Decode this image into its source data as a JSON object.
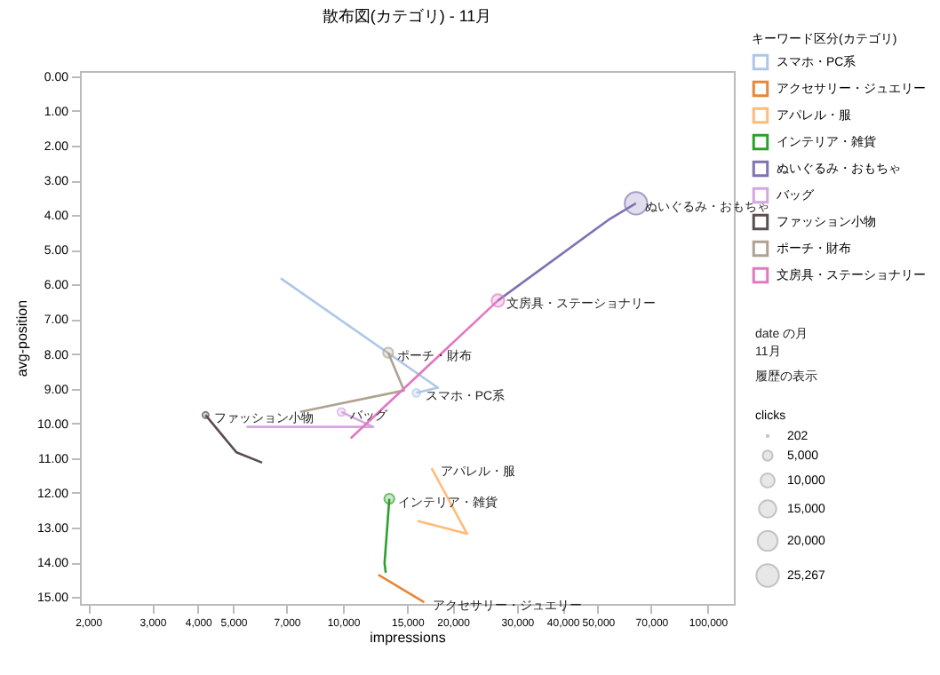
{
  "chart_data": {
    "type": "line",
    "title": "散布図(カテゴリ) - 11月",
    "xlabel": "impressions",
    "ylabel": "avg-position",
    "legend_title": "キーワード区分(カテゴリ)",
    "log": "x",
    "xlim": [
      1900,
      118000
    ],
    "xticks": [
      {
        "value": 2000,
        "label": "2,000"
      },
      {
        "value": 3000,
        "label": "3,000"
      },
      {
        "value": 4000,
        "label": "4,000"
      },
      {
        "value": 5000,
        "label": "5,000"
      },
      {
        "value": 7000,
        "label": "7,000"
      },
      {
        "value": 10000,
        "label": "10,000"
      },
      {
        "value": 15000,
        "label": "15,000"
      },
      {
        "value": 20000,
        "label": "20,000"
      },
      {
        "value": 30000,
        "label": "30,000"
      },
      {
        "value": 40000,
        "label": "40,000"
      },
      {
        "value": 50000,
        "label": "50,000"
      },
      {
        "value": 70000,
        "label": "70,000"
      },
      {
        "value": 100000,
        "label": "100,000"
      }
    ],
    "ylim": [
      15.2,
      -0.15
    ],
    "yticks": [
      {
        "value": 0,
        "label": "0.00"
      },
      {
        "value": 1,
        "label": "1.00"
      },
      {
        "value": 2,
        "label": "2.00"
      },
      {
        "value": 3,
        "label": "3.00"
      },
      {
        "value": 4,
        "label": "4.00"
      },
      {
        "value": 5,
        "label": "5.00"
      },
      {
        "value": 6,
        "label": "6.00"
      },
      {
        "value": 7,
        "label": "7.00"
      },
      {
        "value": 8,
        "label": "8.00"
      },
      {
        "value": 9,
        "label": "9.00"
      },
      {
        "value": 10,
        "label": "10.00"
      },
      {
        "value": 11,
        "label": "11.00"
      },
      {
        "value": 12,
        "label": "12.00"
      },
      {
        "value": 13,
        "label": "13.00"
      },
      {
        "value": 14,
        "label": "14.00"
      },
      {
        "value": 15,
        "label": "15.00"
      }
    ],
    "grid": false,
    "legend": "right",
    "annotations": [
      "date の月",
      "11月",
      "履歴の表示",
      "clicks"
    ],
    "size_legend": [
      {
        "value": 202,
        "label": "202"
      },
      {
        "value": 5000,
        "label": "5,000"
      },
      {
        "value": 10000,
        "label": "10,000"
      },
      {
        "value": 15000,
        "label": "15,000"
      },
      {
        "value": 20000,
        "label": "20,000"
      },
      {
        "value": 25267,
        "label": "25,267"
      }
    ],
    "series": [
      {
        "name": "スマホ・PC系",
        "color": "#aec7e8",
        "x": [
          6750,
          18200,
          15900
        ],
        "values": [
          5.82,
          8.97,
          9.12
        ]
      },
      {
        "name": "アクセサリー・ジュエリー",
        "color": "#e6873a",
        "x": [
          12500,
          16700
        ],
        "values": [
          14.36,
          15.15
        ]
      },
      {
        "name": "アパレル・服",
        "color": "#ffbb78",
        "x": [
          16000,
          21900,
          17500
        ],
        "values": [
          12.81,
          13.18,
          11.29
        ]
      },
      {
        "name": "インテリア・雑貨",
        "color": "#2ca02c",
        "x": [
          13100,
          13000,
          13400
        ],
        "values": [
          14.3,
          14.03,
          12.17
        ]
      },
      {
        "name": "ぬいぐるみ・おもちゃ",
        "color": "#8172b2",
        "x": [
          26600,
          53400,
          63600
        ],
        "values": [
          6.46,
          4.14,
          3.66
        ]
      },
      {
        "name": "バッグ",
        "color": "#d5a6e0",
        "x": [
          5440,
          12100,
          9900
        ],
        "values": [
          10.1,
          10.1,
          9.67
        ]
      },
      {
        "name": "ファッション小物",
        "color": "#5c4e4e",
        "x": [
          6000,
          5100,
          4200
        ],
        "values": [
          11.13,
          10.83,
          9.76
        ]
      },
      {
        "name": "ポーチ・財布",
        "color": "#b0a292",
        "x": [
          7630,
          14700,
          13300
        ],
        "values": [
          9.67,
          9.05,
          7.96
        ]
      },
      {
        "name": "文房具・ステーショナリー",
        "color": "#e377c2",
        "x": [
          10500,
          26600
        ],
        "values": [
          10.43,
          6.46
        ]
      },
      {
        "type": "bubble",
        "x": [
          15900,
          13400,
          63600,
          9900,
          4200,
          13300,
          26600
        ],
        "values": [
          9.12,
          12.17,
          3.66,
          9.67,
          9.76,
          7.96,
          6.46
        ],
        "sizes": [
          3000,
          5000,
          25267,
          3000,
          2000,
          5000,
          8000
        ],
        "colors": [
          "#aec7e8",
          "#2ca02c",
          "#8172b2",
          "#d5a6e0",
          "#5c4e4e",
          "#b0a292",
          "#e377c2"
        ]
      }
    ]
  }
}
